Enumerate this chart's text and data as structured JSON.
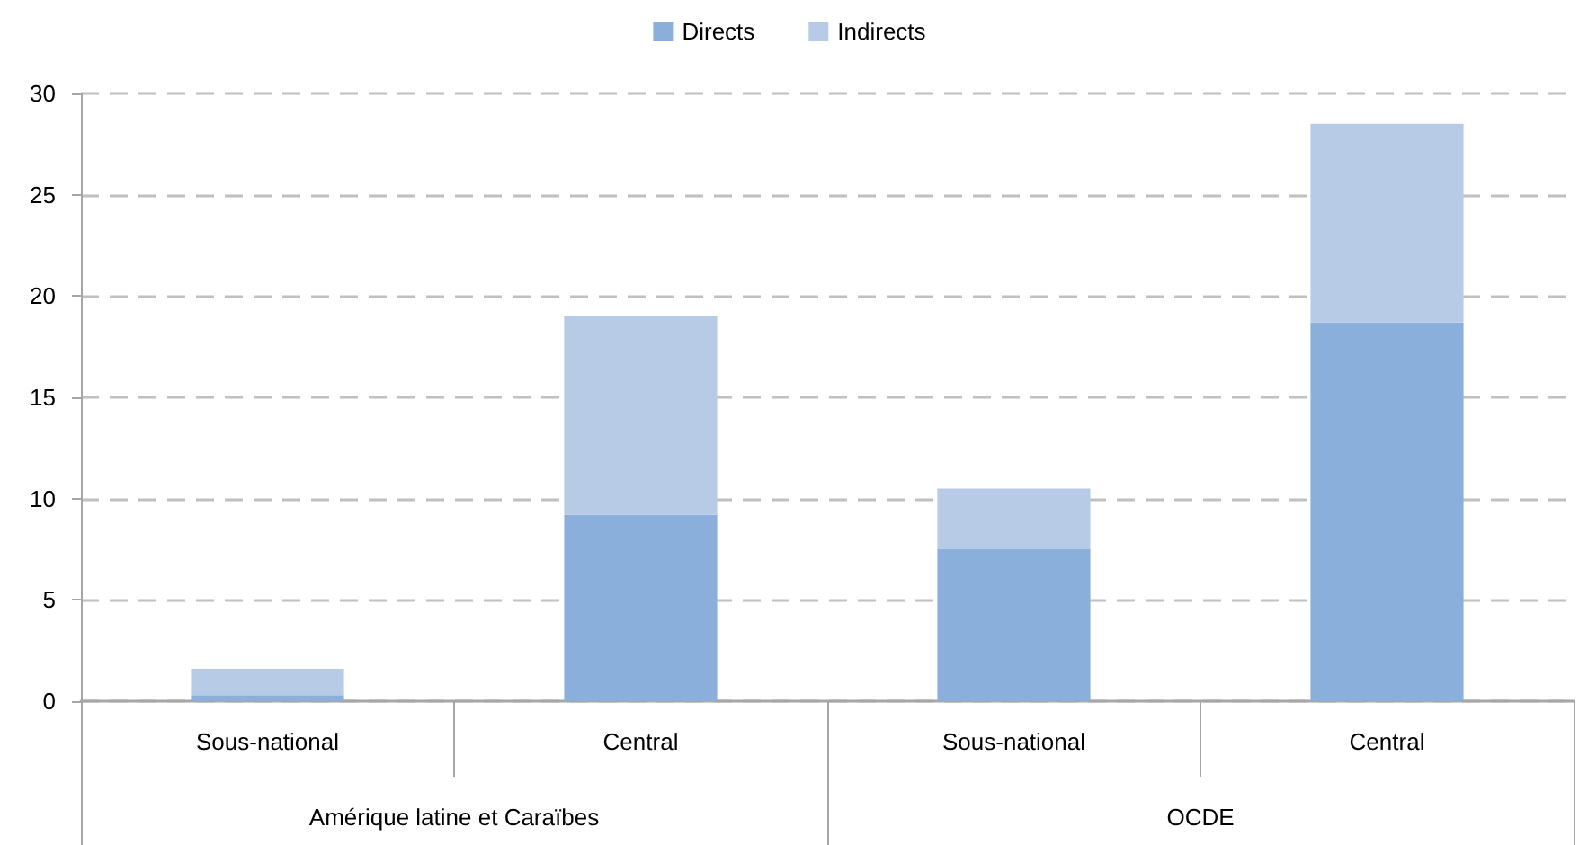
{
  "chart_data": {
    "type": "bar",
    "stacked": true,
    "categories": [
      "Sous-national",
      "Central",
      "Sous-national",
      "Central"
    ],
    "series": [
      {
        "name": "Directs",
        "color": "#8aafdb",
        "values": [
          0.3,
          9.2,
          7.5,
          18.7
        ]
      },
      {
        "name": "Indirects",
        "color": "#b7cbe7",
        "values": [
          1.3,
          9.8,
          3.0,
          9.8
        ]
      }
    ],
    "annotations": [
      "Amérique latine et Caraïbes",
      "OCDE"
    ],
    "ylim": [
      0,
      30
    ],
    "yticks": [
      0,
      5,
      10,
      15,
      20,
      25,
      30
    ],
    "grid": "y",
    "legend": "top"
  }
}
